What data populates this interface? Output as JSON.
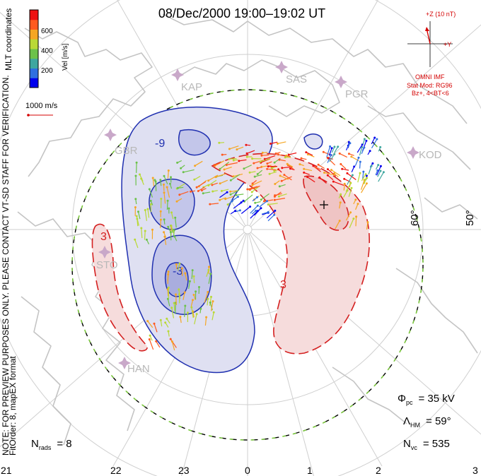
{
  "title": "08/Dec/2000  19:00–19:02  UT",
  "side_label": {
    "coordinates": "MLT coordinates",
    "fit": "FitOrder: 8, mapEX format",
    "note": "NOTE: FOR PREVIEW PURPOSES ONLY. PLEASE CONTACT VT-SD STAFF FOR VERIFICATION."
  },
  "colorbar": {
    "label": "Vel [m/s]",
    "ticks": [
      "600",
      "400",
      "200"
    ],
    "colors": [
      "#0000ee",
      "#2f6fe0",
      "#3fa7a0",
      "#6cc24a",
      "#b9d936",
      "#f5a623",
      "#ff5a1f",
      "#ee1111"
    ]
  },
  "reference_vector": {
    "label": "1000 m/s",
    "color": "#d40000"
  },
  "imf": {
    "bz_label": "+Z (10 nT)",
    "by_label": "+Y",
    "omni": "OMNI IMF",
    "model": "Stat Mod: RG96",
    "condition": "Bz+, 4<BT<6"
  },
  "stations": [
    "KAP",
    "SAS",
    "PGR",
    "KOD",
    "GBR",
    "STO",
    "HAN"
  ],
  "lat_labels": [
    "60°",
    "50°"
  ],
  "mlt_labels": [
    "21",
    "22",
    "23",
    "0",
    "1",
    "2",
    "3"
  ],
  "potential_labels": [
    "-9",
    "-3",
    "3",
    "3"
  ],
  "stats": {
    "phi_sym": "Φ",
    "phi_sub": "pc",
    "phi_val": "= 35 kV",
    "lambda_sym": "Λ",
    "lambda_sub": "HM",
    "lambda_val": "= 59°",
    "nvc_sym": "N",
    "nvc_sub": "vc",
    "nvc_val": "= 535",
    "nrads_sym": "N",
    "nrads_sub": "rads",
    "nrads_val": "= 8"
  },
  "colors": {
    "negative_cell": "#2030b0",
    "positive_cell": "#d42020",
    "negative_fill": "#dfe0f2",
    "positive_fill": "#f6dcdc",
    "coast": "#c4c4c4"
  }
}
